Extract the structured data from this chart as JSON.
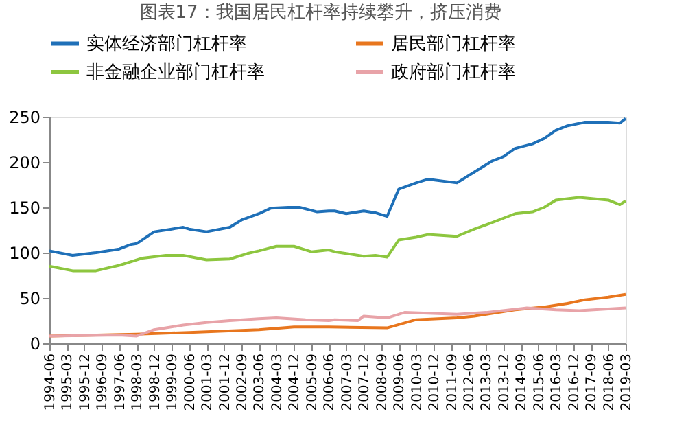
{
  "chart_data": {
    "type": "line",
    "title": "图表17：我国居民杠杆率持续攀升，挤压消费",
    "series": [
      {
        "name": "实体经济部门杠杆率",
        "color": "#1f70b8",
        "x": [
          "1994-06",
          "1995-06",
          "1996-06",
          "1997-06",
          "1997-12",
          "1998-03",
          "1998-12",
          "1999-09",
          "2000-03",
          "2000-06",
          "2001-03",
          "2002-03",
          "2002-09",
          "2003-06",
          "2003-12",
          "2004-09",
          "2005-03",
          "2005-12",
          "2006-06",
          "2006-09",
          "2007-03",
          "2007-12",
          "2008-06",
          "2008-12",
          "2009-06",
          "2010-03",
          "2010-09",
          "2011-12",
          "2012-09",
          "2013-06",
          "2013-12",
          "2014-06",
          "2015-03",
          "2015-09",
          "2016-03",
          "2016-09",
          "2017-06",
          "2018-06",
          "2018-12",
          "2019-03"
        ],
        "values": [
          102,
          97,
          100,
          104,
          109,
          110,
          123,
          126,
          128,
          126,
          123,
          128,
          136,
          143,
          149,
          150,
          150,
          145,
          146,
          146,
          143,
          146,
          144,
          140,
          170,
          177,
          181,
          177,
          189,
          201,
          206,
          215,
          220,
          226,
          235,
          240,
          244,
          244,
          243,
          248
        ]
      },
      {
        "name": "居民部门杠杆率",
        "color": "#e8761e",
        "x": [
          "1994-06",
          "1998-03",
          "2000-06",
          "2003-06",
          "2004-12",
          "2006-06",
          "2008-12",
          "2010-03",
          "2011-12",
          "2012-09",
          "2013-06",
          "2014-06",
          "2015-09",
          "2016-09",
          "2017-06",
          "2018-06",
          "2019-03"
        ],
        "values": [
          8,
          10,
          12,
          15,
          18,
          18,
          17,
          26,
          28,
          30,
          33,
          37,
          40,
          44,
          48,
          51,
          54
        ]
      },
      {
        "name": "非金融企业部门杠杆率",
        "color": "#8dc63f",
        "x": [
          "1994-06",
          "1995-06",
          "1996-06",
          "1997-06",
          "1998-06",
          "1999-06",
          "2000-03",
          "2001-03",
          "2002-03",
          "2002-12",
          "2003-06",
          "2004-03",
          "2004-12",
          "2005-09",
          "2006-06",
          "2006-09",
          "2007-03",
          "2007-12",
          "2008-06",
          "2008-12",
          "2009-06",
          "2010-03",
          "2010-09",
          "2011-12",
          "2012-09",
          "2013-06",
          "2014-06",
          "2015-03",
          "2015-09",
          "2016-03",
          "2017-03",
          "2018-06",
          "2018-12",
          "2019-03"
        ],
        "values": [
          85,
          80,
          80,
          86,
          94,
          97,
          97,
          92,
          93,
          99,
          102,
          107,
          107,
          101,
          103,
          101,
          99,
          96,
          97,
          95,
          114,
          117,
          120,
          118,
          126,
          133,
          143,
          145,
          150,
          158,
          161,
          158,
          153,
          157
        ]
      },
      {
        "name": "政府部门杠杆率",
        "color": "#e8a3a8",
        "x": [
          "1994-06",
          "1997-06",
          "1998-03",
          "1998-12",
          "2000-03",
          "2001-03",
          "2002-03",
          "2003-06",
          "2004-03",
          "2005-06",
          "2006-06",
          "2006-09",
          "2007-09",
          "2007-12",
          "2008-12",
          "2009-09",
          "2011-12",
          "2013-03",
          "2014-12",
          "2016-03",
          "2017-03",
          "2019-03"
        ],
        "values": [
          8,
          9,
          8,
          15,
          20,
          23,
          25,
          27,
          28,
          26,
          25,
          26,
          25,
          30,
          28,
          34,
          32,
          34,
          39,
          37,
          36,
          39
        ]
      }
    ],
    "xlim": [
      "1994-06",
      "2019-03"
    ],
    "xticks": [
      "1994-06",
      "1995-03",
      "1995-12",
      "1996-09",
      "1997-06",
      "1998-03",
      "1998-12",
      "1999-09",
      "2000-06",
      "2001-03",
      "2001-12",
      "2002-09",
      "2003-06",
      "2004-03",
      "2004-12",
      "2005-09",
      "2006-06",
      "2007-03",
      "2007-12",
      "2008-09",
      "2009-06",
      "2010-03",
      "2010-12",
      "2011-09",
      "2012-06",
      "2013-03",
      "2013-12",
      "2014-09",
      "2015-06",
      "2016-03",
      "2016-12",
      "2017-09",
      "2018-06",
      "2019-03"
    ],
    "ylim": [
      0,
      250
    ],
    "yticks": [
      0,
      50,
      100,
      150,
      200,
      250
    ],
    "grid": false,
    "legend": "top",
    "marker": "none",
    "line_style": "solid"
  }
}
